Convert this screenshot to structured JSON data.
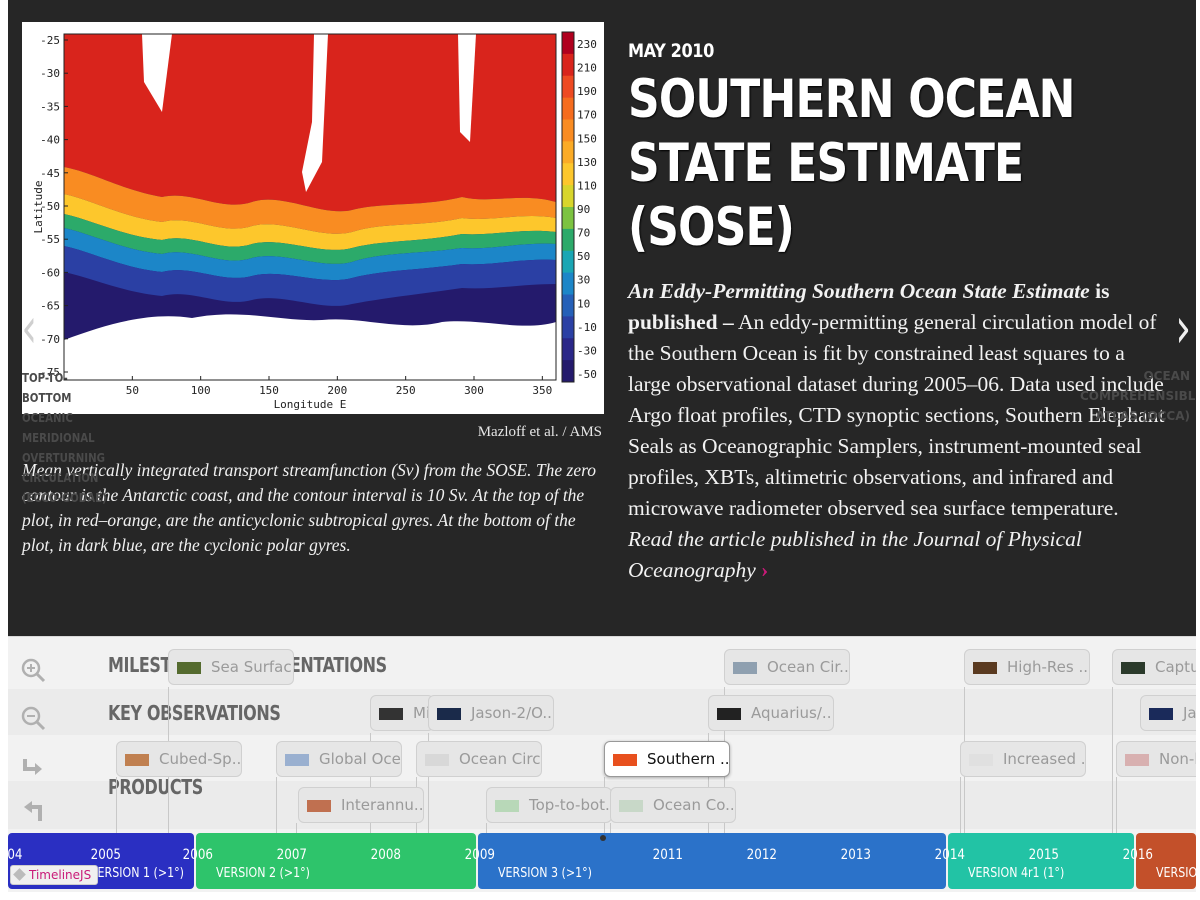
{
  "slide": {
    "date": "MAY 2010",
    "headline": "SOUTHERN OCEAN STATE ESTIMATE (SOSE)",
    "lead_title": "An Eddy-Permitting Southern Ocean State Estimate",
    "lead_tail": " is published –",
    "body": " An eddy-permitting general circulation model of the Southern Ocean is fit by constrained least squares to a large observational dataset during 2005–06. Data used include Argo float profiles, CTD synoptic sections, Southern Elephant Seals as Oceanographic Samplers, instrument-mounted seal profiles, XBTs, altimetric observations, and infrared and microwave radiometer observed sea surface temperature.",
    "read_more": "Read the article published in the Journal of Physical Oceanography",
    "read_more_arrow": "›",
    "credit": "Mazloff et al. / AMS",
    "caption": "Mean vertically integrated transport streamfunction (Sv) from the SOSE. The zero contour is the Antarctic coast, and the contour interval is 10 Sv. At the top of the plot, in red–orange, are the anticyclonic subtropical gyres. At the bottom of the plot, in dark blue, are the cyclonic polar gyres."
  },
  "nav": {
    "prev_icon": "chevron-left-icon",
    "prev_glyph": "‹",
    "prev_label": "TOP-TO-BOTTOM OCEANIC MERIDIONAL OVERTURNING CIRCULATION (ECCO-GODAE)",
    "next_icon": "chevron-right-icon",
    "next_glyph": "›",
    "next_label": "OCEAN COMPREHENSIBLE ATLAS (OCCA)"
  },
  "plot": {
    "xlabel": "Longitude E",
    "ylabel": "Latitude",
    "xticks": [
      "50",
      "100",
      "150",
      "200",
      "250",
      "300",
      "350"
    ],
    "yticks": [
      "-25",
      "-30",
      "-35",
      "-40",
      "-45",
      "-50",
      "-55",
      "-60",
      "-65",
      "-70",
      "-75"
    ],
    "colorbar_ticks": [
      "230",
      "210",
      "190",
      "170",
      "150",
      "130",
      "110",
      "90",
      "70",
      "50",
      "30",
      "10",
      "-10",
      "-30",
      "-50"
    ],
    "colorbar_colors": [
      "#b0001e",
      "#d9241c",
      "#ee4a22",
      "#f56c1e",
      "#f98c22",
      "#fbab26",
      "#fdc72c",
      "#d8d52c",
      "#7cc341",
      "#2caa6a",
      "#1aa6b4",
      "#1c86c8",
      "#2560b8",
      "#2b40a4",
      "#2a2788",
      "#241a6c"
    ]
  },
  "timenav": {
    "groups": [
      "MILESTONES/DOCUMENTATIONS",
      "KEY OBSERVATIONS",
      "PRODUCTS"
    ],
    "tools": {
      "zoom_in": "zoom-in-icon",
      "zoom_out": "zoom-out-icon",
      "redo": "redo-icon",
      "undo": "undo-icon"
    },
    "markers": [
      {
        "label": "Sea Surfac...",
        "thumb": "#556b2f"
      },
      {
        "label": "Mi",
        "thumb": "#333333"
      },
      {
        "label": "Jason-2/O...",
        "thumb": "#1a2a4a"
      },
      {
        "label": "Ocean Cir...",
        "thumb": "#8fa0b0"
      },
      {
        "label": "Aquarius/...",
        "thumb": "#222222"
      },
      {
        "label": "High-Res ...",
        "thumb": "#5a3a20"
      },
      {
        "label": "Captu",
        "thumb": "#2b3a2b"
      },
      {
        "label": "Jas",
        "thumb": "#1a2a5a"
      },
      {
        "label": "Cubed-Sp...",
        "thumb": "#c08050"
      },
      {
        "label": "Global Oce...",
        "thumb": "#9ab0d0"
      },
      {
        "label": "Ocean Circ...",
        "thumb": "#d8d8d8"
      },
      {
        "label": "Southern ...",
        "thumb": "#e8501e"
      },
      {
        "label": "Increased ...",
        "thumb": "#e0e0e0"
      },
      {
        "label": "Non-lin",
        "thumb": "#d8b0b0"
      },
      {
        "label": "Interannu...",
        "thumb": "#c07050"
      },
      {
        "label": "Top-to-bot...",
        "thumb": "#b8d8b8"
      },
      {
        "label": "Ocean Co...",
        "thumb": "#c8d8c8"
      }
    ],
    "eras": [
      {
        "label": "VERSION 1 (>1°)",
        "color": "#2a2fc2"
      },
      {
        "label": "VERSION 2 (>1°)",
        "color": "#2ec46b"
      },
      {
        "label": "VERSION 3 (>1°)",
        "color": "#2b72c9"
      },
      {
        "label": "VERSION 4r1 (1°)",
        "color": "#22c3a5"
      },
      {
        "label": "VERSIO",
        "color": "#c3502a"
      }
    ],
    "years": [
      "04",
      "2005",
      "2006",
      "2007",
      "2008",
      "2009",
      "2011",
      "2012",
      "2013",
      "2014",
      "2015",
      "2016"
    ],
    "badge": "TimelineJS"
  }
}
